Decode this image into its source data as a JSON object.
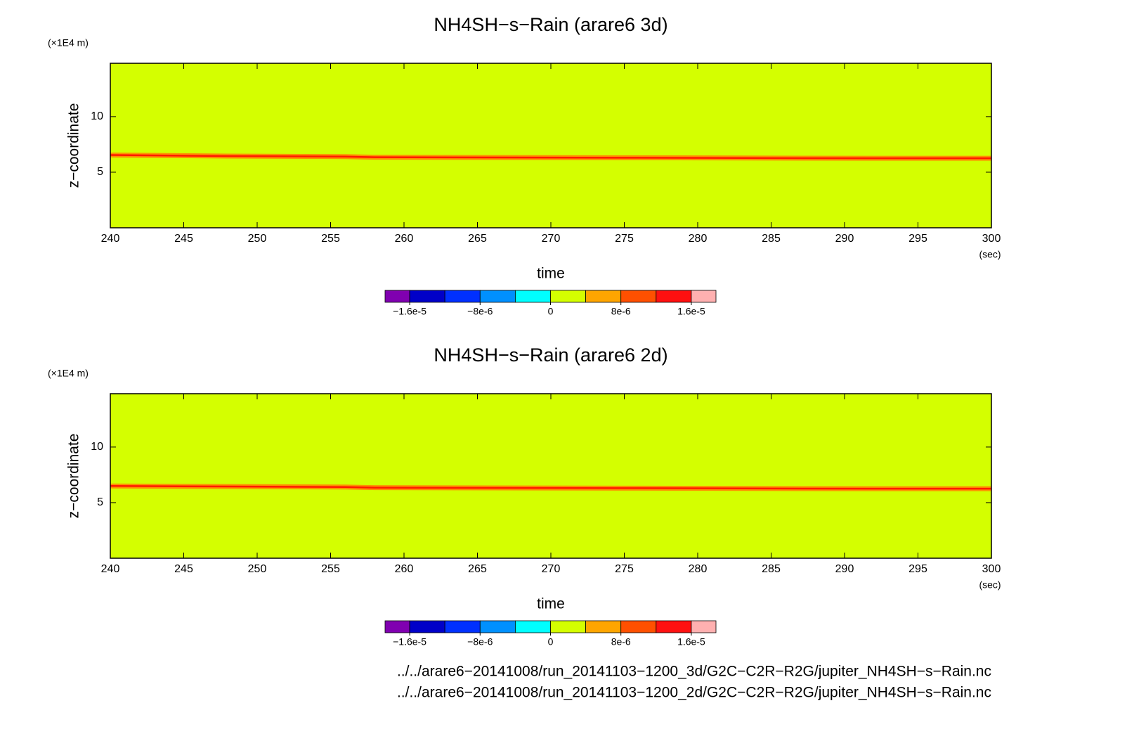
{
  "chart_data": [
    {
      "type": "contour",
      "title": "NH4SH−s−Rain (arare6 3d)",
      "y_unit": "(×1E4 m)",
      "ylabel": "z−coordinate",
      "xlabel": "time",
      "x_unit": "(sec)",
      "xlim": [
        240,
        300
      ],
      "xticks": [
        240,
        245,
        250,
        255,
        260,
        265,
        270,
        275,
        280,
        285,
        290,
        295,
        300
      ],
      "ylim": [
        0,
        14.8
      ],
      "yticks": [
        5,
        10
      ],
      "background": "#d4ff00",
      "halo_color": "#ff9000",
      "x": [
        240,
        248,
        256,
        258,
        276,
        292,
        300
      ],
      "series": [
        {
          "color": "#ff1a00",
          "values": [
            6.55,
            6.45,
            6.4,
            6.35,
            6.3,
            6.25,
            6.25
          ]
        }
      ],
      "colorbar": {
        "lim": [
          -1.88e-05,
          1.88e-05
        ],
        "levels": [
          -1.6e-05,
          -1.2e-05,
          -8e-06,
          -4e-06,
          0,
          4e-06,
          8e-06,
          1.2e-05,
          1.6e-05
        ],
        "colors": [
          "#8000b0",
          "#0000c8",
          "#0030ff",
          "#0090ff",
          "#00ffff",
          "#d4ff00",
          "#ffa500",
          "#ff5000",
          "#ff1010",
          "#ffb0b0"
        ],
        "ticks": [
          {
            "value": -1.6e-05,
            "label": "−1.6e-5"
          },
          {
            "value": -8e-06,
            "label": "−8e-6"
          },
          0,
          {
            "value": 8e-06,
            "label": "8e-6"
          },
          {
            "value": 1.6e-05,
            "label": "1.6e-5"
          }
        ]
      }
    },
    {
      "type": "contour",
      "title": "NH4SH−s−Rain (arare6 2d)",
      "y_unit": "(×1E4 m)",
      "ylabel": "z−coordinate",
      "xlabel": "time",
      "x_unit": "(sec)",
      "xlim": [
        240,
        300
      ],
      "xticks": [
        240,
        245,
        250,
        255,
        260,
        265,
        270,
        275,
        280,
        285,
        290,
        295,
        300
      ],
      "ylim": [
        0,
        14.8
      ],
      "yticks": [
        5,
        10
      ],
      "background": "#d4ff00",
      "halo_color": "#ff9000",
      "x": [
        240,
        248,
        256,
        258,
        276,
        292,
        300
      ],
      "series": [
        {
          "color": "#ff1a00",
          "values": [
            6.5,
            6.45,
            6.4,
            6.35,
            6.3,
            6.25,
            6.25
          ]
        }
      ],
      "colorbar": {
        "lim": [
          -1.88e-05,
          1.88e-05
        ],
        "levels": [
          -1.6e-05,
          -1.2e-05,
          -8e-06,
          -4e-06,
          0,
          4e-06,
          8e-06,
          1.2e-05,
          1.6e-05
        ],
        "colors": [
          "#8000b0",
          "#0000c8",
          "#0030ff",
          "#0090ff",
          "#00ffff",
          "#d4ff00",
          "#ffa500",
          "#ff5000",
          "#ff1010",
          "#ffb0b0"
        ],
        "ticks": [
          {
            "value": -1.6e-05,
            "label": "−1.6e-5"
          },
          {
            "value": -8e-06,
            "label": "−8e-6"
          },
          0,
          {
            "value": 8e-06,
            "label": "8e-6"
          },
          {
            "value": 1.6e-05,
            "label": "1.6e-5"
          }
        ]
      }
    }
  ],
  "footer": {
    "lines": [
      "../../arare6−20141008/run_20141103−1200_3d/G2C−C2R−R2G/jupiter_NH4SH−s−Rain.nc",
      "../../arare6−20141008/run_20141103−1200_2d/G2C−C2R−R2G/jupiter_NH4SH−s−Rain.nc"
    ]
  }
}
